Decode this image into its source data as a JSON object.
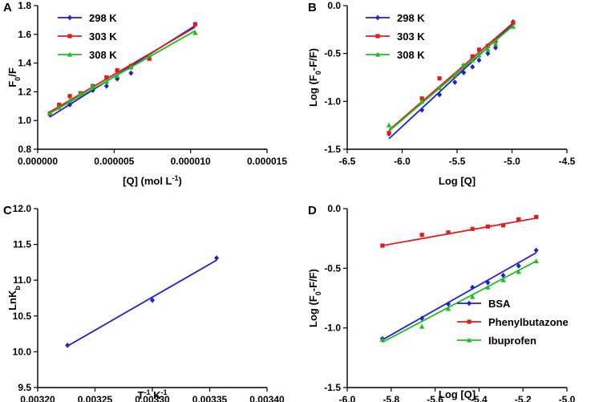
{
  "chart_data": [
    {
      "panel": "A",
      "type": "scatter",
      "xlabel_parts": [
        "[Q] (mol L",
        "-1",
        ")"
      ],
      "ylabel_parts": [
        "F",
        "0",
        "/F"
      ],
      "xlim": [
        0,
        1.5e-05
      ],
      "ylim": [
        0.8,
        1.8
      ],
      "xticks": [
        0,
        5e-06,
        1e-05,
        1.5e-05
      ],
      "xtick_labels": [
        "0.000000",
        "0.000005",
        "0.000010",
        "0.000015"
      ],
      "yticks": [
        0.8,
        1.0,
        1.2,
        1.4,
        1.6,
        1.8
      ],
      "ytick_labels": [
        "0.8",
        "1.0",
        "1.2",
        "1.4",
        "1.6",
        "1.8"
      ],
      "legend_position": "top-left",
      "series": [
        {
          "name": "298 K",
          "color": "#1f1fd6",
          "marker": "diamond",
          "x": [
            8e-07,
            2.1e-06,
            3.6e-06,
            4.5e-06,
            5.2e-06,
            6.1e-06,
            1.03e-05
          ],
          "y": [
            1.04,
            1.11,
            1.21,
            1.24,
            1.29,
            1.33,
            1.67
          ],
          "fit": [
            [
              8e-07,
              1.025
            ],
            [
              1.03e-05,
              1.66
            ]
          ]
        },
        {
          "name": "303 K",
          "color": "#e01d1d",
          "marker": "square",
          "x": [
            8e-07,
            1.4e-06,
            2.1e-06,
            2.8e-06,
            3.6e-06,
            4.5e-06,
            5.2e-06,
            6.1e-06,
            7.3e-06,
            1.03e-05
          ],
          "y": [
            1.05,
            1.11,
            1.17,
            1.19,
            1.24,
            1.3,
            1.35,
            1.38,
            1.43,
            1.67
          ],
          "fit": [
            [
              8e-07,
              1.06
            ],
            [
              1.03e-05,
              1.65
            ]
          ]
        },
        {
          "name": "308 K",
          "color": "#1dbf1d",
          "marker": "triangle",
          "x": [
            8e-07,
            1.4e-06,
            2.1e-06,
            2.8e-06,
            3.6e-06,
            4.5e-06,
            5.2e-06,
            6.1e-06,
            7.3e-06,
            1.03e-05
          ],
          "y": [
            1.05,
            1.09,
            1.14,
            1.19,
            1.24,
            1.27,
            1.31,
            1.37,
            1.45,
            1.61
          ],
          "fit": [
            [
              8e-07,
              1.05
            ],
            [
              1.03e-05,
              1.625
            ]
          ]
        }
      ]
    },
    {
      "panel": "B",
      "type": "scatter",
      "xlabel_parts": [
        "Log [Q]"
      ],
      "ylabel_parts": [
        "Log (F",
        "0",
        "-F/F)"
      ],
      "xlim": [
        -6.5,
        -4.5
      ],
      "ylim": [
        -1.5,
        0.0
      ],
      "xticks": [
        -6.5,
        -6.0,
        -5.5,
        -5.0,
        -4.5
      ],
      "xtick_labels": [
        "-6.5",
        "-6.0",
        "-5.5",
        "-5.0",
        "-4.5"
      ],
      "yticks": [
        -1.5,
        -1.0,
        -0.5,
        0.0
      ],
      "ytick_labels": [
        "-1.5",
        "-1.0",
        "-0.5",
        "0.0"
      ],
      "legend_position": "top-left",
      "series": [
        {
          "name": "298 K",
          "color": "#1f1fd6",
          "marker": "diamond",
          "x": [
            -6.12,
            -5.82,
            -5.66,
            -5.52,
            -5.44,
            -5.36,
            -5.3,
            -5.22,
            -5.15,
            -4.99
          ],
          "y": [
            -1.34,
            -1.09,
            -0.93,
            -0.8,
            -0.7,
            -0.64,
            -0.57,
            -0.5,
            -0.44,
            -0.17
          ],
          "fit": [
            [
              -6.12,
              -1.39
            ],
            [
              -4.99,
              -0.19
            ]
          ]
        },
        {
          "name": "303 K",
          "color": "#e01d1d",
          "marker": "square",
          "x": [
            -6.12,
            -5.82,
            -5.66,
            -5.52,
            -5.44,
            -5.36,
            -5.3,
            -5.22,
            -5.15,
            -4.99
          ],
          "y": [
            -1.33,
            -0.97,
            -0.76,
            -0.73,
            -0.63,
            -0.53,
            -0.46,
            -0.42,
            -0.37,
            -0.18
          ],
          "fit": [
            [
              -6.12,
              -1.3
            ],
            [
              -4.99,
              -0.18
            ]
          ]
        },
        {
          "name": "308 K",
          "color": "#1dbf1d",
          "marker": "triangle",
          "x": [
            -6.12,
            -5.82,
            -5.66,
            -5.52,
            -5.44,
            -5.36,
            -5.3,
            -5.22,
            -5.15,
            -4.99
          ],
          "y": [
            -1.25,
            -1.0,
            -0.86,
            -0.72,
            -0.62,
            -0.57,
            -0.52,
            -0.46,
            -0.4,
            -0.22
          ],
          "fit": [
            [
              -6.12,
              -1.31
            ],
            [
              -4.99,
              -0.21
            ]
          ]
        }
      ]
    },
    {
      "panel": "C",
      "type": "scatter",
      "xlabel_parts": [
        "T",
        "-1",
        " K",
        "-1",
        ""
      ],
      "ylabel_parts": [
        "LnK",
        "b",
        ""
      ],
      "xlim": [
        0.0032,
        0.0034
      ],
      "ylim": [
        9.5,
        12.0
      ],
      "xticks": [
        0.0032,
        0.00325,
        0.0033,
        0.00335,
        0.0034
      ],
      "xtick_labels": [
        "0.00320",
        "0.00325",
        "0.00330",
        "0.00335",
        "0.00340"
      ],
      "yticks": [
        9.5,
        10.0,
        10.5,
        11.0,
        11.5,
        12.0
      ],
      "ytick_labels": [
        "9.5",
        "10.0",
        "10.5",
        "11.0",
        "11.5",
        "12.0"
      ],
      "legend_position": "none",
      "series": [
        {
          "name": "LnKb",
          "color": "#1f1fd6",
          "marker": "diamond",
          "x": [
            0.003226,
            0.0033,
            0.003356
          ],
          "y": [
            10.09,
            10.72,
            11.31
          ],
          "fit": [
            [
              0.003226,
              10.08
            ],
            [
              0.003356,
              11.28
            ]
          ]
        }
      ]
    },
    {
      "panel": "D",
      "type": "scatter",
      "xlabel_parts": [
        "Log [Q]"
      ],
      "ylabel_parts": [
        "Log (F",
        "0",
        "-F/F)"
      ],
      "xlim": [
        -6.0,
        -5.0
      ],
      "ylim": [
        -1.5,
        0.0
      ],
      "xticks": [
        -6.0,
        -5.8,
        -5.6,
        -5.4,
        -5.2,
        -5.0
      ],
      "xtick_labels": [
        "-6.0",
        "-5.8",
        "-5.6",
        "-5.4",
        "-5.2",
        "-5.0"
      ],
      "yticks": [
        -1.5,
        -1.0,
        -0.5,
        0.0
      ],
      "ytick_labels": [
        "-1.5",
        "-1.0",
        "-0.5",
        "0.0"
      ],
      "legend_position": "bottom-right",
      "series": [
        {
          "name": "BSA",
          "color": "#1f1fd6",
          "marker": "diamond",
          "x": [
            -5.84,
            -5.66,
            -5.54,
            -5.43,
            -5.36,
            -5.29,
            -5.22,
            -5.14
          ],
          "y": [
            -1.09,
            -0.92,
            -0.8,
            -0.66,
            -0.62,
            -0.56,
            -0.48,
            -0.35
          ],
          "fit": [
            [
              -5.84,
              -1.1
            ],
            [
              -5.14,
              -0.37
            ]
          ]
        },
        {
          "name": "Phenylbutazone",
          "color": "#e01d1d",
          "marker": "square",
          "x": [
            -5.84,
            -5.66,
            -5.54,
            -5.43,
            -5.36,
            -5.29,
            -5.22,
            -5.14
          ],
          "y": [
            -0.31,
            -0.22,
            -0.2,
            -0.17,
            -0.15,
            -0.14,
            -0.09,
            -0.07
          ],
          "fit": [
            [
              -5.84,
              -0.31
            ],
            [
              -5.14,
              -0.08
            ]
          ]
        },
        {
          "name": "Ibuprofen",
          "color": "#1dbf1d",
          "marker": "triangle",
          "x": [
            -5.84,
            -5.66,
            -5.54,
            -5.43,
            -5.36,
            -5.29,
            -5.22,
            -5.14
          ],
          "y": [
            -1.1,
            -0.99,
            -0.84,
            -0.74,
            -0.66,
            -0.6,
            -0.53,
            -0.44
          ],
          "fit": [
            [
              -5.84,
              -1.12
            ],
            [
              -5.14,
              -0.44
            ]
          ]
        }
      ]
    }
  ]
}
